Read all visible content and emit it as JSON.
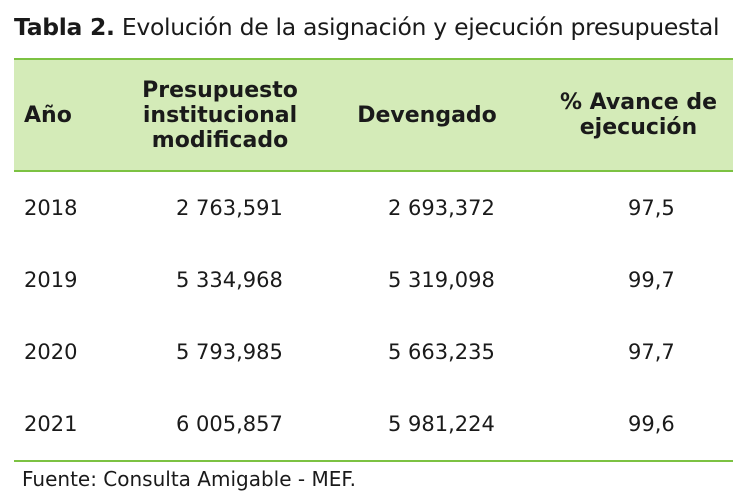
{
  "caption": {
    "label": "Tabla 2.",
    "text": " Evolución de la asignación y ejecución presupuestal"
  },
  "table": {
    "headers": [
      "Año",
      "Presupuesto\ninstitucional\nmodificado",
      "Devengado",
      "% Avance de\nejecución"
    ],
    "rows": [
      [
        "2018",
        "2 763,591",
        "2 693,372",
        "97,5"
      ],
      [
        "2019",
        "5 334,968",
        "5 319,098",
        "99,7"
      ],
      [
        "2020",
        "5 793,985",
        "5 663,235",
        "97,7"
      ],
      [
        "2021",
        "6 005,857",
        "5 981,224",
        "99,6"
      ]
    ]
  },
  "source": "Fuente: Consulta Amigable - MEF.",
  "colors": {
    "header_bg": "#d4ebb8",
    "rule": "#7cc242"
  }
}
